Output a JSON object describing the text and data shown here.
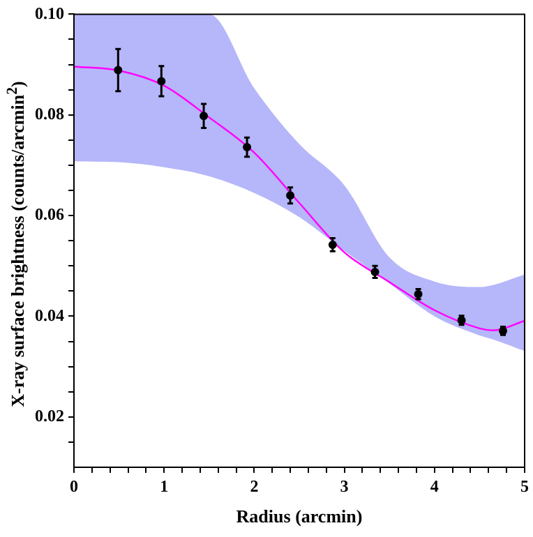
{
  "chart_data": {
    "type": "scatter",
    "xlabel": "Radius (arcmin)",
    "ylabel": "X-ray surface brightness (counts/arcmin$^{2}$)",
    "xlim": [
      0,
      5
    ],
    "ylim": [
      0.01,
      0.1
    ],
    "xticks": [
      0,
      {
        "value": 0.2,
        "label": null
      },
      {
        "value": 0.4,
        "label": null
      },
      {
        "value": 0.6,
        "label": null
      },
      {
        "value": 0.8,
        "label": null
      },
      1,
      {
        "value": 1.2,
        "label": null
      },
      {
        "value": 1.4,
        "label": null
      },
      {
        "value": 1.6,
        "label": null
      },
      {
        "value": 1.8,
        "label": null
      },
      2,
      {
        "value": 2.2,
        "label": null
      },
      {
        "value": 2.4,
        "label": null
      },
      {
        "value": 2.6,
        "label": null
      },
      {
        "value": 2.8,
        "label": null
      },
      3,
      {
        "value": 3.2,
        "label": null
      },
      {
        "value": 3.4,
        "label": null
      },
      {
        "value": 3.6,
        "label": null
      },
      {
        "value": 3.8,
        "label": null
      },
      4,
      {
        "value": 4.2,
        "label": null
      },
      {
        "value": 4.4,
        "label": null
      },
      {
        "value": 4.6,
        "label": null
      },
      {
        "value": 4.8,
        "label": null
      },
      5
    ],
    "yticks": [
      {
        "value": 0.015,
        "label": null
      },
      0.02,
      {
        "value": 0.025,
        "label": null
      },
      {
        "value": 0.03,
        "label": null
      },
      {
        "value": 0.035,
        "label": null
      },
      0.04,
      {
        "value": 0.045,
        "label": null
      },
      {
        "value": 0.05,
        "label": null
      },
      {
        "value": 0.055,
        "label": null
      },
      0.06,
      {
        "value": 0.065,
        "label": null
      },
      {
        "value": 0.07,
        "label": null
      },
      {
        "value": 0.075,
        "label": null
      },
      0.08,
      {
        "value": 0.085,
        "label": null
      },
      {
        "value": 0.09,
        "label": null
      },
      {
        "value": 0.095,
        "label": null
      },
      {
        "value": 0.1,
        "label": "0.10"
      }
    ],
    "grid": false,
    "legend": false,
    "series": [
      {
        "type": "line",
        "color": "#ff00ff",
        "marker": "none",
        "line_style": "solid",
        "x": [
          0,
          0.5,
          1,
          1.5,
          2,
          2.5,
          3,
          3.5,
          4,
          4.5,
          4.65,
          5
        ],
        "values": [
          0.0896,
          0.0888,
          0.0858,
          0.0795,
          0.0725,
          0.0625,
          0.0527,
          0.0468,
          0.0412,
          0.0376,
          0.0372,
          0.0391
        ],
        "lower": [
          0.0708,
          0.0706,
          0.0696,
          0.0678,
          0.0645,
          0.0597,
          0.053,
          0.0465,
          0.04,
          0.0362,
          0.0354,
          0.0331
        ],
        "upper": [
          0.1,
          0.1,
          0.1,
          0.1,
          0.0853,
          0.0742,
          0.066,
          0.0517,
          0.0469,
          0.0458,
          0.0462,
          0.0483
        ]
      },
      {
        "type": "scatter",
        "color": "#000000",
        "marker": "circle",
        "x": [
          0.49,
          0.97,
          1.44,
          1.92,
          2.4,
          2.87,
          3.34,
          3.82,
          4.3,
          4.76
        ],
        "values": [
          0.0889,
          0.0867,
          0.0798,
          0.0736,
          0.064,
          0.0542,
          0.0488,
          0.0444,
          0.0392,
          0.0371
        ],
        "errors": [
          0.0042,
          0.003,
          0.0024,
          0.0019,
          0.0016,
          0.0013,
          0.0012,
          0.001,
          0.0009,
          0.0008
        ]
      }
    ]
  }
}
